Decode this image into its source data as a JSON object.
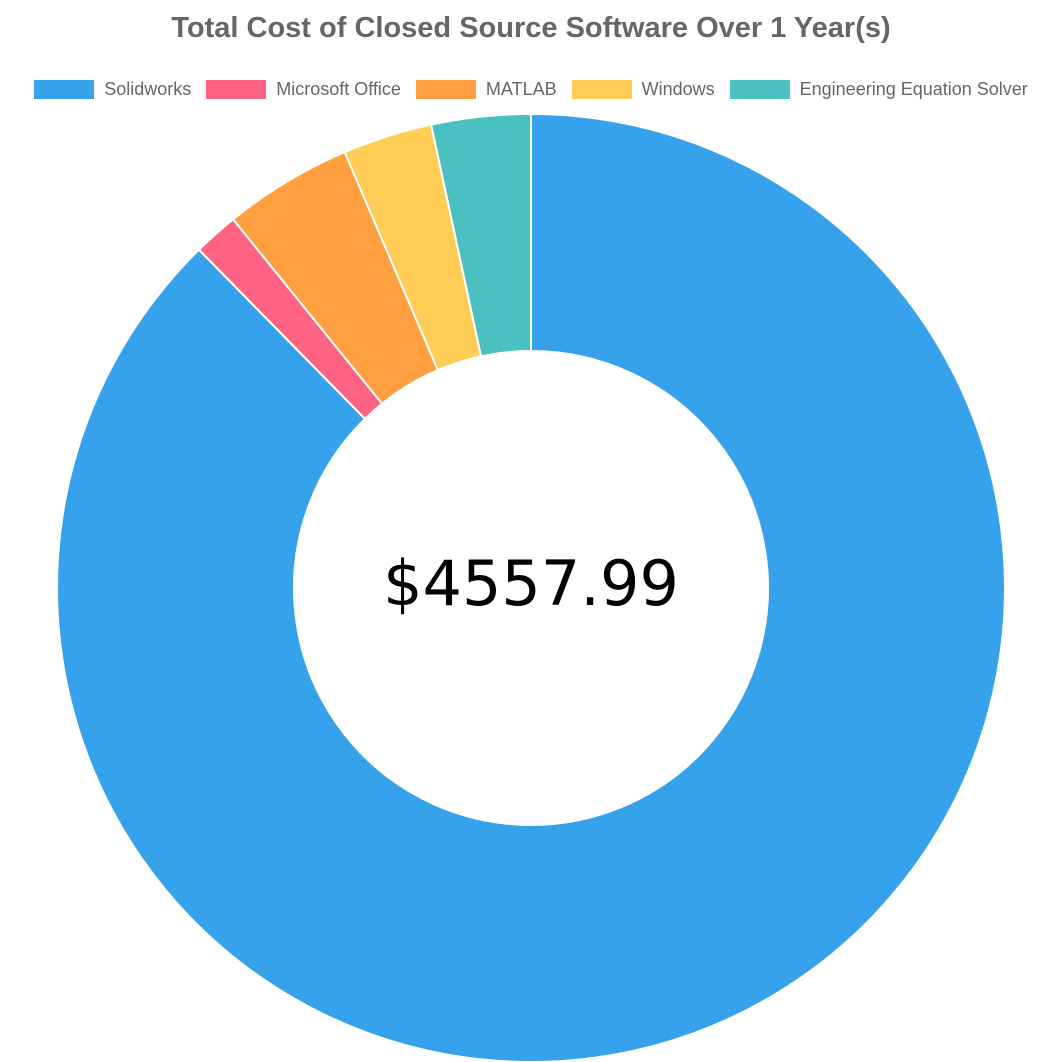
{
  "chart_data": {
    "type": "pie",
    "title": "Total Cost of Closed Source Software Over 1 Year(s)",
    "categories": [
      "Solidworks",
      "Microsoft Office",
      "MATLAB",
      "Windows",
      "Engineering Equation Solver"
    ],
    "values": [
      3995,
      70,
      200,
      139,
      154
    ],
    "colors": [
      "#36a2eb",
      "#ff6384",
      "#ff9f40",
      "#ffcd56",
      "#4bc0c0"
    ],
    "legend_position": "top",
    "center_label": "$4557.99"
  }
}
